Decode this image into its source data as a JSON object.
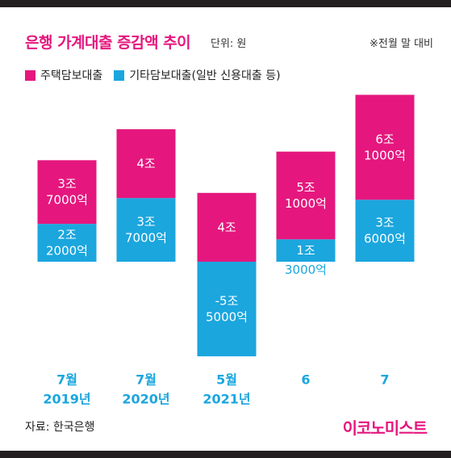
{
  "header": {
    "title": "은행 가계대출 증감액 추이",
    "unit": "단위: 원",
    "note": "※전월 말 대비"
  },
  "legend": [
    {
      "label": "주택담보대출",
      "color": "#e5177e"
    },
    {
      "label": "기타담보대출(일반 신용대출 등)",
      "color": "#1ba6de"
    }
  ],
  "footer": {
    "source": "자료: 한국은행",
    "brand": "이코노미스트"
  },
  "chart_data": {
    "type": "bar",
    "stacked": true,
    "categories": [
      [
        "7월",
        "2019년"
      ],
      [
        "7월",
        "2020년"
      ],
      [
        "5월",
        "2021년"
      ],
      [
        "6"
      ],
      [
        "7"
      ]
    ],
    "series": [
      {
        "name": "주택담보대출",
        "color": "#e5177e",
        "values": [
          3.7,
          4.0,
          4.0,
          5.1,
          6.1
        ],
        "labels": [
          [
            "3조",
            "7000억"
          ],
          [
            "4조"
          ],
          [
            "4조"
          ],
          [
            "5조",
            "1000억"
          ],
          [
            "6조",
            "1000억"
          ]
        ]
      },
      {
        "name": "기타담보대출(일반 신용대출 등)",
        "color": "#1ba6de",
        "values": [
          2.2,
          3.7,
          -5.5,
          1.3,
          3.6
        ],
        "labels": [
          [
            "2조",
            "2000억"
          ],
          [
            "3조",
            "7000억"
          ],
          [
            "-5조",
            "5000억"
          ],
          [
            "1조",
            "3000억"
          ],
          [
            "3조",
            "6000억"
          ]
        ]
      }
    ],
    "ylabel": "",
    "xlabel": ""
  }
}
